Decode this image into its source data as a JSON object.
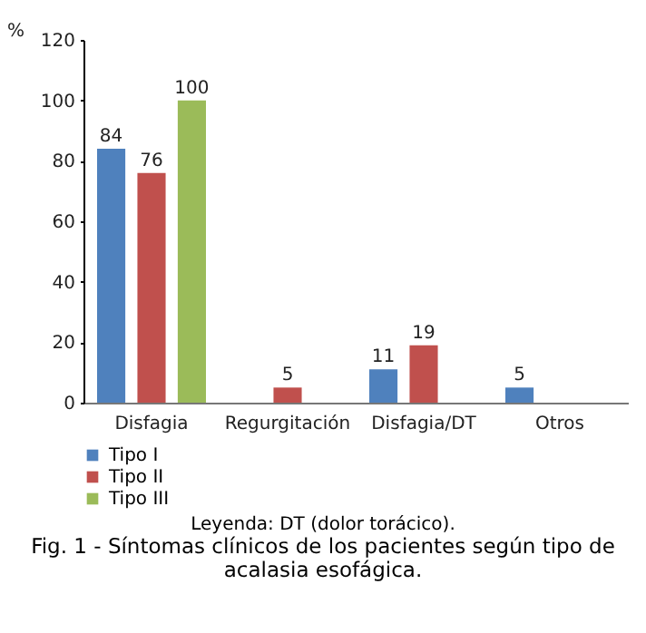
{
  "chart_data": {
    "type": "bar",
    "title": "Fig. 1 - Síntomas clínicos de los pacientes según tipo de acalasia esofágica.",
    "ylabel": "%",
    "categories": [
      "Disfagia",
      "Regurgitación",
      "Disfagia/DT",
      "Otros"
    ],
    "series": [
      {
        "name": "Tipo I",
        "color": "#4f81bd",
        "values": [
          84,
          null,
          11,
          5
        ]
      },
      {
        "name": "Tipo II",
        "color": "#c0504d",
        "values": [
          76,
          5,
          19,
          null
        ]
      },
      {
        "name": "Tipo III",
        "color": "#9bbb59",
        "values": [
          100,
          null,
          null,
          null
        ]
      }
    ],
    "ylim": [
      0,
      120
    ],
    "yticks": [
      0,
      20,
      40,
      60,
      80,
      100,
      120
    ],
    "grid": false,
    "data_labels": true,
    "legend": "bottom left",
    "annotations": [
      "Leyenda: DT (dolor torácico)."
    ]
  }
}
